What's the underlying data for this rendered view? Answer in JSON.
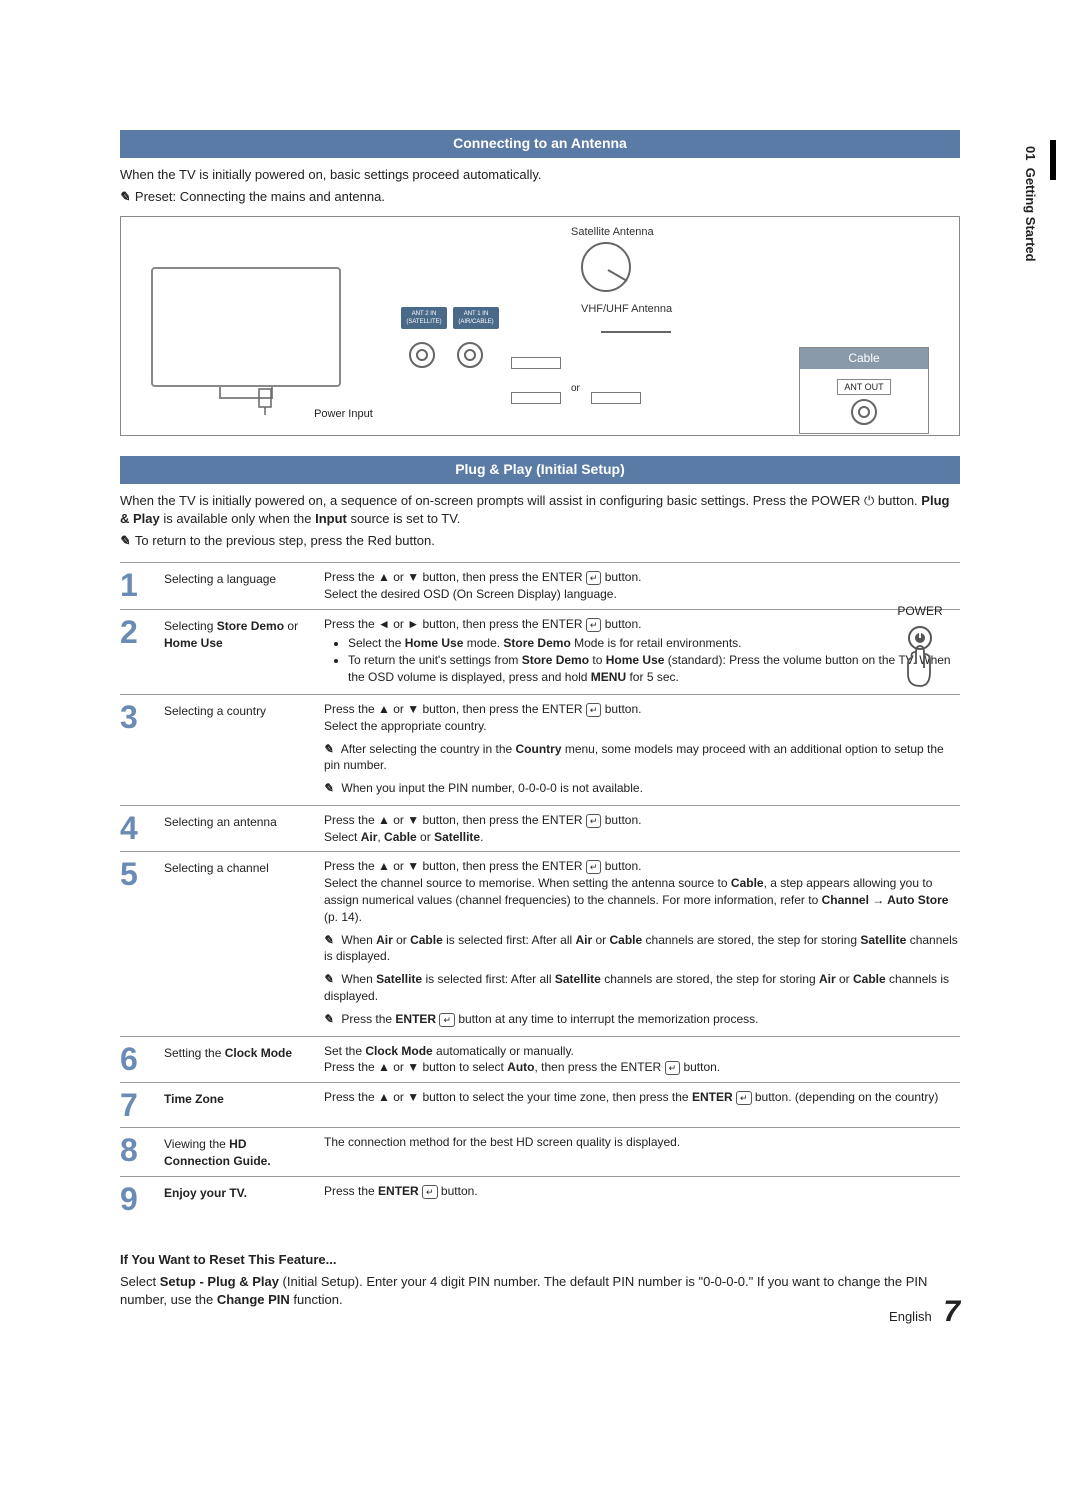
{
  "sidebar": {
    "chapter_num": "01",
    "chapter_title": "Getting Started"
  },
  "section1": {
    "title": "Connecting to an Antenna",
    "intro": "When the TV is initially powered on, basic settings proceed automatically.",
    "preset_note": "Preset: Connecting the mains and antenna."
  },
  "diagram": {
    "satellite": "Satellite Antenna",
    "vhf": "VHF/UHF Antenna",
    "or": "or",
    "power": "Power Input",
    "cable": "Cable",
    "antout": "ANT OUT",
    "port1_top": "ANT 2 IN",
    "port1_bot": "(SATELLITE)",
    "port2_top": "ANT 1 IN",
    "port2_bot": "(AIR/CABLE)"
  },
  "section2": {
    "title": "Plug & Play (Initial Setup)",
    "intro1a": "When the TV is initially powered on, a sequence of on-screen prompts will assist in configuring basic settings. Press the POWER ",
    "intro1b": " button. ",
    "intro_bold1": "Plug & Play",
    "intro1c": " is available only when the ",
    "intro_bold2": "Input",
    "intro1d": " source is set to TV.",
    "return_note": "To return to the previous step, press the Red button.",
    "power_label": "POWER"
  },
  "steps": [
    {
      "n": "1",
      "title": "Selecting a language",
      "body_lines": [
        "Press the ▲ or ▼ button, then press the ENTER ⏎ button.",
        "Select the desired OSD (On Screen Display) language."
      ]
    },
    {
      "n": "2",
      "title_html": "Selecting <b>Store Demo</b> or <b>Home Use</b>",
      "body_lines": [
        "Press the ◄ or ► button, then press the ENTER ⏎ button."
      ],
      "bullets": [
        "Select the <b>Home Use</b> mode. <b>Store Demo</b> Mode is for retail environments.",
        "To return the unit's settings from <b>Store Demo</b> to <b>Home Use</b> (standard): Press the volume button on the TV. When the OSD volume is displayed, press and hold <b>MENU</b> for 5 sec."
      ]
    },
    {
      "n": "3",
      "title": "Selecting a country",
      "body_lines": [
        "Press the ▲ or ▼ button, then press the ENTER ⏎ button.",
        "Select the appropriate country."
      ],
      "notes": [
        "After selecting the country in the <b>Country</b> menu, some models may proceed with an additional option to setup the pin number.",
        "When you input the PIN number, 0-0-0-0 is not available."
      ]
    },
    {
      "n": "4",
      "title": "Selecting an antenna",
      "body_lines": [
        "Press the ▲ or ▼ button, then press the ENTER ⏎ button.",
        "Select <b>Air</b>, <b>Cable</b> or <b>Satellite</b>."
      ]
    },
    {
      "n": "5",
      "title": "Selecting a channel",
      "body_lines": [
        "Press the ▲ or ▼ button, then press the ENTER ⏎ button.",
        "Select the channel source to memorise. When setting the antenna source to <b>Cable</b>, a step appears allowing you to assign numerical values (channel frequencies) to the channels. For more information, refer to <b>Channel → Auto Store</b> (p. 14)."
      ],
      "notes": [
        "When <b>Air</b> or <b>Cable</b> is selected first: After all <b>Air</b> or <b>Cable</b> channels are stored, the step for storing <b>Satellite</b> channels is displayed.",
        "When <b>Satellite</b> is selected first: After all <b>Satellite</b> channels are stored, the step for storing <b>Air</b> or <b>Cable</b> channels is displayed.",
        "Press the <b>ENTER</b> ⏎ button at any time to interrupt the memorization process."
      ]
    },
    {
      "n": "6",
      "title_html": "Setting the <b>Clock Mode</b>",
      "body_lines": [
        "Set the <b>Clock Mode</b> automatically or manually.",
        "Press the ▲ or ▼ button to select <b>Auto</b>, then press the ENTER ⏎ button."
      ]
    },
    {
      "n": "7",
      "title_html": "<b>Time Zone</b>",
      "body_lines": [
        "Press the ▲ or ▼ button to select the your time zone, then press the <b>ENTER</b> ⏎ button. (depending on the country)"
      ]
    },
    {
      "n": "8",
      "title_html": "Viewing the <b>HD Connection Guide.</b>",
      "body_lines": [
        "The connection method for the best HD screen quality is displayed."
      ]
    },
    {
      "n": "9",
      "title_html": "<b>Enjoy your TV.</b>",
      "body_lines": [
        "Press the <b>ENTER</b> ⏎ button."
      ]
    }
  ],
  "reset": {
    "heading": "If You Want to Reset This Feature...",
    "body": "Select <b>Setup - Plug & Play</b> (Initial Setup). Enter your 4 digit PIN number. The default PIN number is \"0-0-0-0.\" If you want to change the PIN number, use the <b>Change PIN</b> function."
  },
  "footer": {
    "lang": "English",
    "page": "7"
  }
}
